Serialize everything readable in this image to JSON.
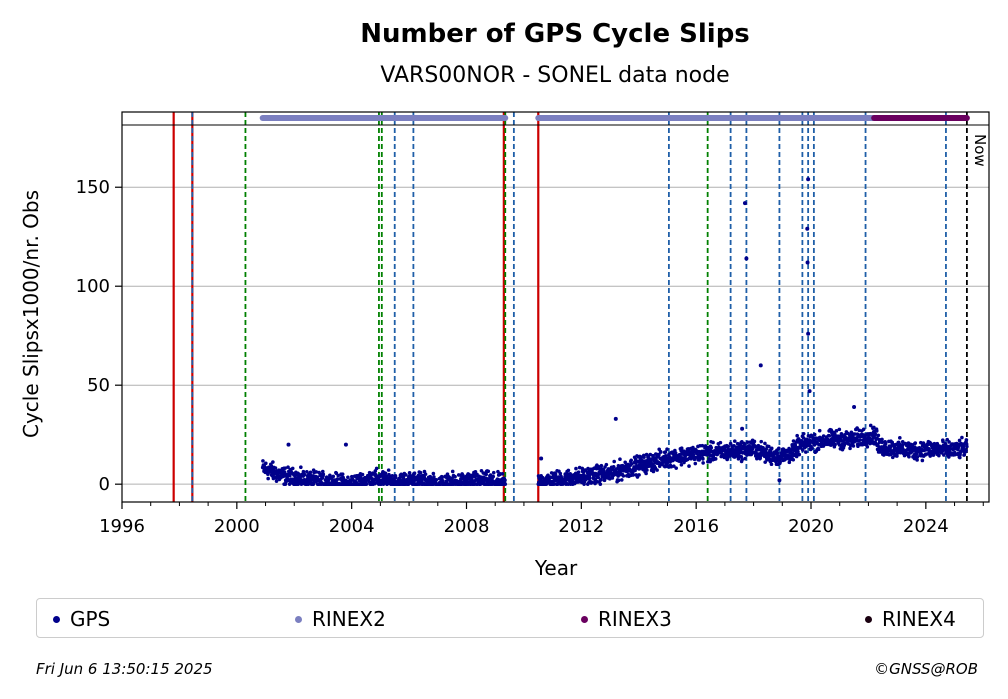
{
  "chart_data": {
    "type": "scatter",
    "title": "Number of GPS Cycle Slips",
    "subtitle": "VARS00NOR - SONEL data node",
    "xlabel": "Year",
    "ylabel": "Cycle Slipsx1000/nr. Obs",
    "xlim": [
      1996,
      2026.2
    ],
    "ylim": [
      -9,
      188
    ],
    "x_ticks": [
      1996,
      2000,
      2004,
      2008,
      2012,
      2016,
      2020,
      2024
    ],
    "y_ticks": [
      0,
      50,
      100,
      150
    ],
    "grid": "horizontal",
    "now_label": "Now",
    "now_year": 2025.43,
    "series": [
      {
        "name": "GPS",
        "color": "#00008b",
        "clusters": [
          {
            "start": 2000.9,
            "end": 2009.35,
            "values": [
              8,
              4,
              2,
              1,
              0,
              3,
              1,
              2,
              0,
              1,
              2,
              0
            ]
          },
          {
            "start": 2010.5,
            "end": 2013.3,
            "values": [
              1,
              2,
              3,
              4,
              5,
              6
            ]
          },
          {
            "start": 2013.3,
            "end": 2017.5,
            "values": [
              7,
              10,
              13,
              15,
              16,
              17
            ]
          },
          {
            "start": 2017.5,
            "end": 2019.5,
            "values": [
              17,
              18,
              15,
              14,
              17
            ]
          },
          {
            "start": 2019.5,
            "end": 2022.3,
            "values": [
              19,
              21,
              22,
              23,
              22,
              24,
              25
            ]
          },
          {
            "start": 2022.3,
            "end": 2025.43,
            "values": [
              19,
              18,
              17,
              18,
              17,
              18
            ]
          }
        ],
        "outliers": [
          {
            "x": 2001.8,
            "y": 20
          },
          {
            "x": 2003.8,
            "y": 20
          },
          {
            "x": 2013.2,
            "y": 33
          },
          {
            "x": 2017.7,
            "y": 142
          },
          {
            "x": 2017.75,
            "y": 114
          },
          {
            "x": 2018.25,
            "y": 60
          },
          {
            "x": 2019.9,
            "y": 154
          },
          {
            "x": 2019.87,
            "y": 129
          },
          {
            "x": 2019.88,
            "y": 112
          },
          {
            "x": 2019.9,
            "y": 76
          },
          {
            "x": 2019.95,
            "y": 47
          },
          {
            "x": 2021.5,
            "y": 39
          },
          {
            "x": 2017.6,
            "y": 28
          },
          {
            "x": 2018.9,
            "y": 2
          },
          {
            "x": 2010.6,
            "y": 13
          }
        ]
      }
    ],
    "rinex_bars": [
      {
        "name": "RINEX2",
        "color": "#7b7fc0",
        "start": 2000.9,
        "end": 2009.35
      },
      {
        "name": "RINEX2",
        "color": "#7b7fc0",
        "start": 2010.5,
        "end": 2022.2
      },
      {
        "name": "RINEX3",
        "color": "#6a005f",
        "start": 2022.2,
        "end": 2025.43
      }
    ],
    "event_lines": [
      {
        "year": 1997.8,
        "color": "#cc0000",
        "style": "solid"
      },
      {
        "year": 1998.45,
        "color": "#cc0000",
        "style": "solid"
      },
      {
        "year": 1998.45,
        "color": "#1f5fa8",
        "style": "dashed"
      },
      {
        "year": 2000.3,
        "color": "#008000",
        "style": "dashed"
      },
      {
        "year": 2004.95,
        "color": "#008000",
        "style": "dashed"
      },
      {
        "year": 2005.05,
        "color": "#008000",
        "style": "dashed"
      },
      {
        "year": 2005.5,
        "color": "#1f5fa8",
        "style": "dashed"
      },
      {
        "year": 2006.15,
        "color": "#1f5fa8",
        "style": "dashed"
      },
      {
        "year": 2009.3,
        "color": "#cc0000",
        "style": "solid"
      },
      {
        "year": 2009.35,
        "color": "#008000",
        "style": "dashed"
      },
      {
        "year": 2009.65,
        "color": "#1f5fa8",
        "style": "dashed"
      },
      {
        "year": 2010.5,
        "color": "#cc0000",
        "style": "solid"
      },
      {
        "year": 2015.05,
        "color": "#1f5fa8",
        "style": "dashed"
      },
      {
        "year": 2016.4,
        "color": "#008000",
        "style": "dashed"
      },
      {
        "year": 2017.2,
        "color": "#1f5fa8",
        "style": "dashed"
      },
      {
        "year": 2017.75,
        "color": "#1f5fa8",
        "style": "dashed"
      },
      {
        "year": 2018.9,
        "color": "#1f5fa8",
        "style": "dashed"
      },
      {
        "year": 2019.7,
        "color": "#1f5fa8",
        "style": "dashed"
      },
      {
        "year": 2019.9,
        "color": "#1f5fa8",
        "style": "dashed"
      },
      {
        "year": 2020.1,
        "color": "#1f5fa8",
        "style": "dashed"
      },
      {
        "year": 2021.9,
        "color": "#1f5fa8",
        "style": "dashed"
      },
      {
        "year": 2024.7,
        "color": "#1f5fa8",
        "style": "dashed"
      },
      {
        "year": 2025.43,
        "color": "#000000",
        "style": "dashed"
      }
    ]
  },
  "legend": [
    {
      "label": "GPS",
      "color": "#00008b"
    },
    {
      "label": "RINEX2",
      "color": "#7b7fc0"
    },
    {
      "label": "RINEX3",
      "color": "#6a005f"
    },
    {
      "label": "RINEX4",
      "color": "#1a0010"
    }
  ],
  "footer": {
    "timestamp": "Fri Jun  6 13:50:15 2025",
    "copyright": "©GNSS@ROB"
  }
}
